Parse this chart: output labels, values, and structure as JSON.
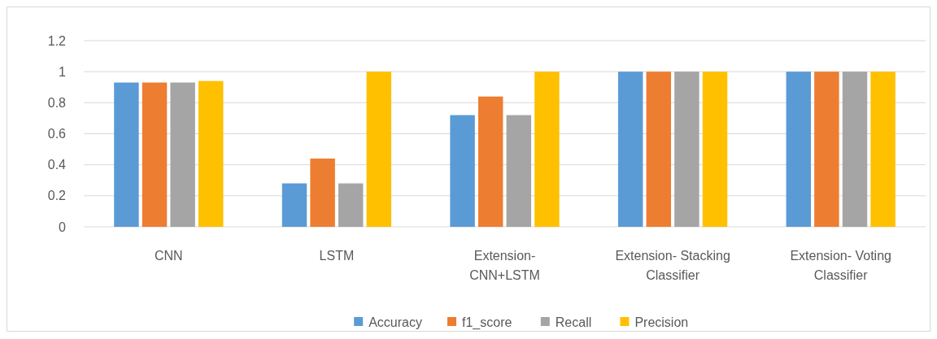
{
  "chart_data": {
    "type": "bar",
    "categories": [
      "CNN",
      "LSTM",
      "Extension- CNN+LSTM",
      "Extension- Stacking Classifier",
      "Extension- Voting Classifier"
    ],
    "series": [
      {
        "name": "Accuracy",
        "color": "#5b9bd5",
        "values": [
          0.93,
          0.28,
          0.72,
          1,
          1
        ]
      },
      {
        "name": "f1_score",
        "color": "#ed7d31",
        "values": [
          0.93,
          0.44,
          0.84,
          1,
          1
        ]
      },
      {
        "name": "Recall",
        "color": "#a5a5a5",
        "values": [
          0.93,
          0.28,
          0.72,
          1,
          1
        ]
      },
      {
        "name": "Precision",
        "color": "#ffc000",
        "values": [
          0.94,
          1,
          1,
          1,
          1
        ]
      }
    ],
    "ylim": [
      0,
      1.2
    ],
    "yticks": [
      0,
      0.2,
      0.4,
      0.6,
      0.8,
      1,
      1.2
    ],
    "grid": "y",
    "legend": "bottom"
  }
}
